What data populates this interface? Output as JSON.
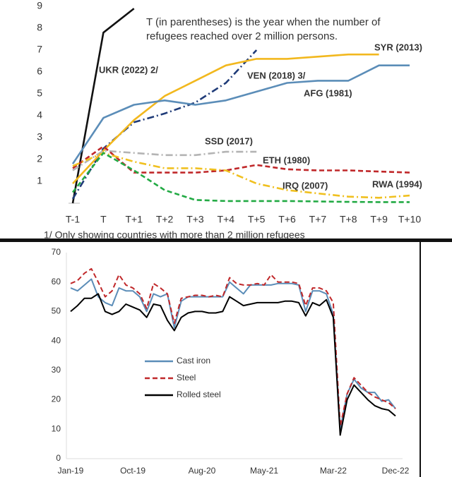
{
  "chart_data": [
    {
      "type": "line",
      "annotation": [
        "T (in parentheses) is the year when the number of",
        "refugees reached over 2 million persons."
      ],
      "footnote": "1/ Only showing countries with more than 2 million refugees",
      "categories": [
        "T-1",
        "T",
        "T+1",
        "T+2",
        "T+3",
        "T+4",
        "T+5",
        "T+6",
        "T+7",
        "T+8",
        "T+9",
        "T+10"
      ],
      "ylim": [
        0,
        9
      ],
      "yticks": [
        1,
        2,
        3,
        4,
        5,
        6,
        7,
        8,
        9
      ],
      "grid": false,
      "labels": "inline",
      "series": [
        {
          "name": "UKR (2022) 2/",
          "color": "#111111",
          "dash": "solid",
          "values": [
            0,
            7.8,
            8.9,
            null,
            null,
            null,
            null,
            null,
            null,
            null,
            null,
            null
          ]
        },
        {
          "name": "VEN (2018) 3/",
          "color": "#1f3b78",
          "dash": "dashdot",
          "values": [
            0.2,
            2.5,
            3.7,
            4.1,
            4.6,
            5.5,
            7.0,
            null,
            null,
            null,
            null,
            null
          ]
        },
        {
          "name": "SYR (2013)",
          "color": "#f2b81e",
          "dash": "solid",
          "values": [
            0.9,
            2.4,
            3.8,
            4.9,
            5.6,
            6.3,
            6.6,
            6.6,
            6.7,
            6.8,
            6.8,
            null
          ]
        },
        {
          "name": "AFG (1981)",
          "color": "#5b8db8",
          "dash": "solid",
          "values": [
            1.8,
            3.9,
            4.5,
            4.7,
            4.5,
            4.7,
            5.1,
            5.5,
            5.6,
            5.6,
            6.3,
            6.3
          ]
        },
        {
          "name": "SSD (2017)",
          "color": "#b4b4b4",
          "dash": "dashdot",
          "values": [
            1.5,
            2.4,
            2.3,
            2.2,
            2.2,
            2.35,
            2.35,
            null,
            null,
            null,
            null,
            null
          ]
        },
        {
          "name": "ETH (1980)",
          "color": "#c0282a",
          "dash": "dashed",
          "values": [
            1.6,
            2.6,
            1.4,
            1.4,
            1.4,
            1.5,
            1.75,
            1.55,
            1.5,
            1.5,
            1.45,
            1.4
          ]
        },
        {
          "name": "IRQ (2007)",
          "color": "#f0c020",
          "dash": "dashdot",
          "values": [
            1.7,
            2.3,
            1.9,
            1.6,
            1.6,
            1.5,
            0.9,
            0.6,
            0.45,
            0.3,
            0.25,
            0.35
          ]
        },
        {
          "name": "RWA (1994)",
          "color": "#22aa44",
          "dash": "dashed",
          "values": [
            0.5,
            2.3,
            1.5,
            0.6,
            0.15,
            0.1,
            0.1,
            0.1,
            0.08,
            0.06,
            0.05,
            0.05
          ]
        }
      ]
    },
    {
      "type": "line",
      "categories": [
        "Jan-19",
        null,
        null,
        null,
        null,
        null,
        null,
        null,
        null,
        "Oct-19",
        null,
        null,
        null,
        null,
        null,
        null,
        null,
        null,
        null,
        "Aug-20",
        null,
        null,
        null,
        null,
        null,
        null,
        null,
        null,
        "May-21",
        null,
        null,
        null,
        null,
        null,
        null,
        null,
        null,
        null,
        "Mar-22",
        null,
        null,
        null,
        null,
        null,
        null,
        null,
        null,
        "Dec-22"
      ],
      "ylim": [
        0,
        70
      ],
      "yticks": [
        0,
        10,
        20,
        30,
        40,
        50,
        60,
        70
      ],
      "grid": false,
      "legend": "center-left",
      "series": [
        {
          "name": "Cast iron",
          "color": "#5b8db8",
          "dash": "solid",
          "values": [
            58,
            57,
            59,
            61,
            55,
            53,
            52,
            58,
            57,
            57,
            55,
            50,
            56,
            55,
            56,
            44.5,
            53.5,
            55,
            55,
            55,
            55,
            55,
            55,
            60,
            58,
            56,
            59,
            59,
            59,
            59,
            59.5,
            59.5,
            59.5,
            59,
            50,
            57,
            57,
            56,
            49,
            10,
            22,
            27,
            24,
            22.5,
            22.5,
            19.5,
            20,
            17
          ]
        },
        {
          "name": "Steel",
          "color": "#c0282a",
          "dash": "dashed",
          "values": [
            59.5,
            60.5,
            63,
            64.5,
            60,
            55,
            57,
            62.5,
            59,
            58,
            56,
            51,
            59.5,
            58,
            56,
            46,
            54.5,
            55,
            55.5,
            55.5,
            55,
            55.5,
            55,
            61.5,
            59.5,
            59,
            59,
            59.5,
            59,
            62.5,
            60,
            60,
            60,
            59.5,
            52,
            58,
            58,
            57,
            53,
            11,
            22,
            27.5,
            25,
            22.5,
            21,
            20,
            19,
            17
          ]
        },
        {
          "name": "Rolled steel",
          "color": "#000000",
          "dash": "solid",
          "values": [
            50,
            52,
            54.5,
            54.5,
            56,
            50,
            49,
            50,
            52.5,
            51.5,
            50.5,
            48,
            52.5,
            52,
            47,
            43.5,
            48,
            49.5,
            50,
            50,
            49.5,
            49.5,
            50,
            55,
            53.5,
            52,
            52.5,
            53,
            53,
            53,
            53,
            53.5,
            53.5,
            53,
            48.5,
            53,
            52,
            54,
            48,
            8,
            20,
            25,
            22.5,
            20,
            18,
            17,
            16.5,
            14.5
          ]
        }
      ]
    }
  ]
}
